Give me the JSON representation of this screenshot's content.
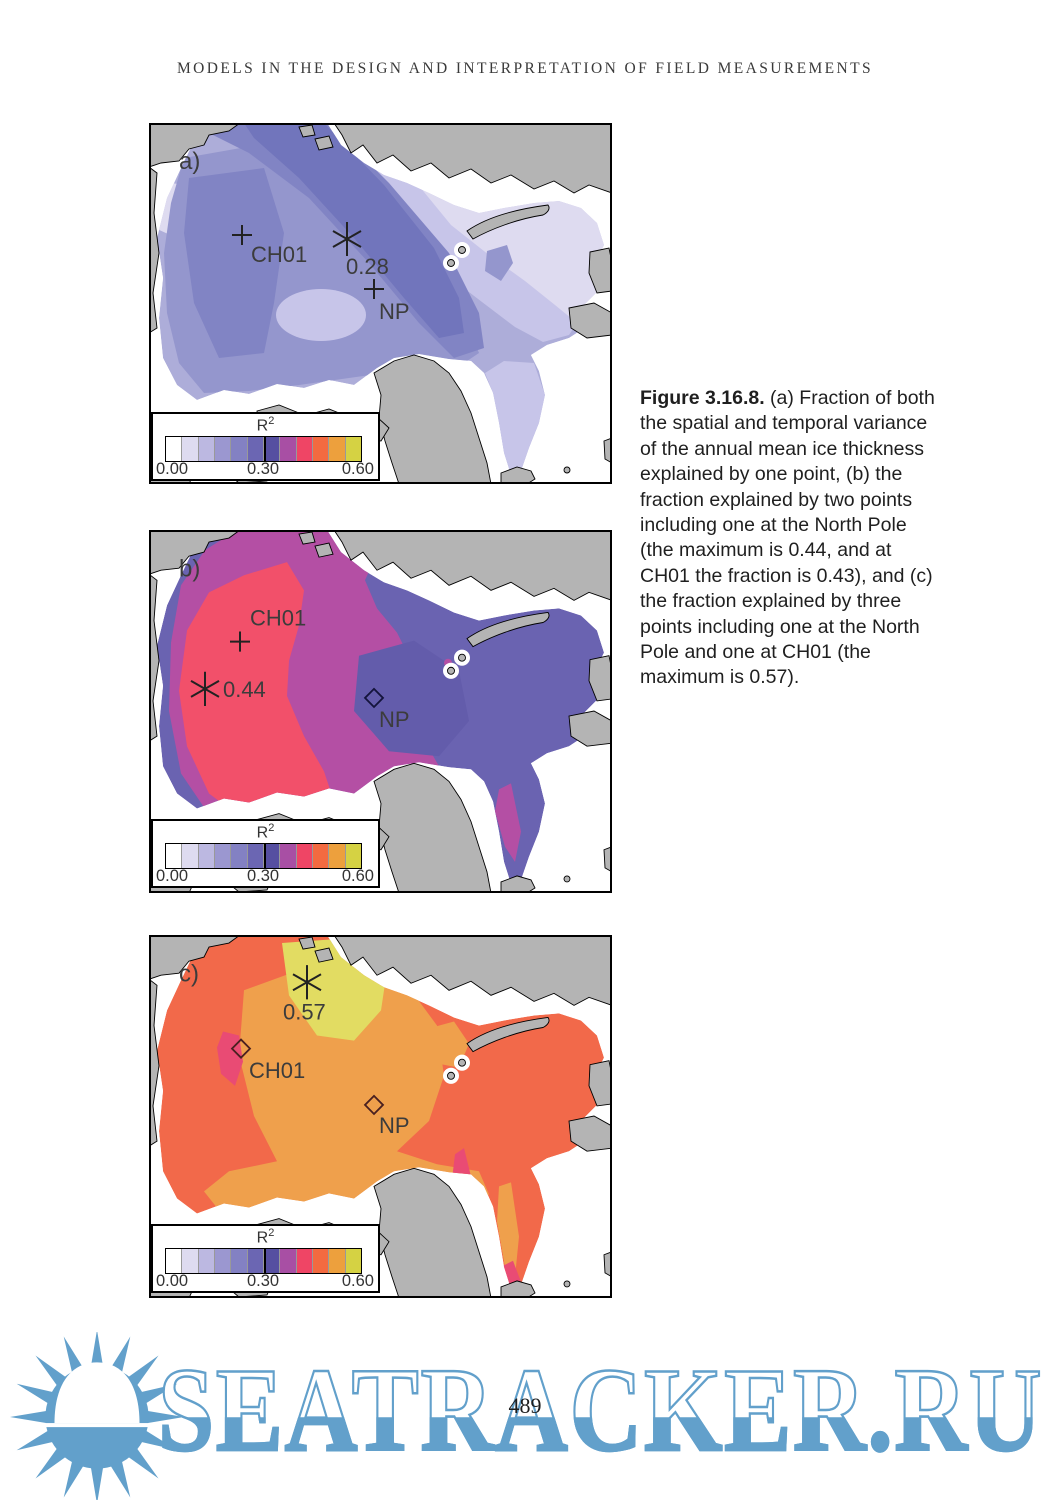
{
  "page": {
    "header": "MODELS IN THE DESIGN AND INTERPRETATION OF FIELD MEASUREMENTS",
    "page_number": "489"
  },
  "caption": {
    "label": "Figure 3.16.8.",
    "text": " (a) Fraction of both the spatial and temporal variance of the annual mean ice thickness explained by one point, (b) the fraction explained by two points including one at the North Pole (the maximum is 0.44, and at CH01 the fraction is 0.43), and (c) the fraction explained by three points including one at the North Pole and one at CH01 (the maximum is 0.57)."
  },
  "figure": {
    "land_color": "#b4b4b4",
    "ocean_color": "#ffffff",
    "colorbar": {
      "title_base": "R",
      "title_sup": "2",
      "ticks": [
        "0.00",
        "0.30",
        "0.60"
      ],
      "colors": [
        "#ffffff",
        "#dedbf0",
        "#bcb8e1",
        "#9b97d0",
        "#8381c3",
        "#6b66b3",
        "#564fa1",
        "#a84fa4",
        "#ef4565",
        "#f36a40",
        "#eda03d",
        "#d5d243"
      ]
    },
    "panels": [
      {
        "id": "a",
        "labels": {
          "panel": "a)",
          "ch01": "CH01",
          "np": "NP",
          "value": "0.28"
        },
        "shades": {
          "s1": "#dedbf0",
          "s2": "#c7c5e9",
          "s3": "#adadd9",
          "s4": "#9496cd",
          "s5": "#8184c4",
          "s6": "#7175bc"
        }
      },
      {
        "id": "b",
        "labels": {
          "panel": "b)",
          "ch01": "CH01",
          "np": "NP",
          "value": "0.44"
        },
        "colors": {
          "base": "#6a63b1",
          "deep": "#635cab",
          "magenta": "#b44fa4",
          "red": "#f2506a"
        }
      },
      {
        "id": "c",
        "labels": {
          "panel": "c)",
          "ch01": "CH01",
          "np": "NP",
          "value": "0.57"
        },
        "colors": {
          "base": "#f2694a",
          "orange": "#efa04c",
          "yellow": "#e2dc62",
          "pink": "#e94b74"
        }
      }
    ]
  },
  "watermark": {
    "text": "SEATRACKER.RU",
    "color": "#62a0cb"
  }
}
